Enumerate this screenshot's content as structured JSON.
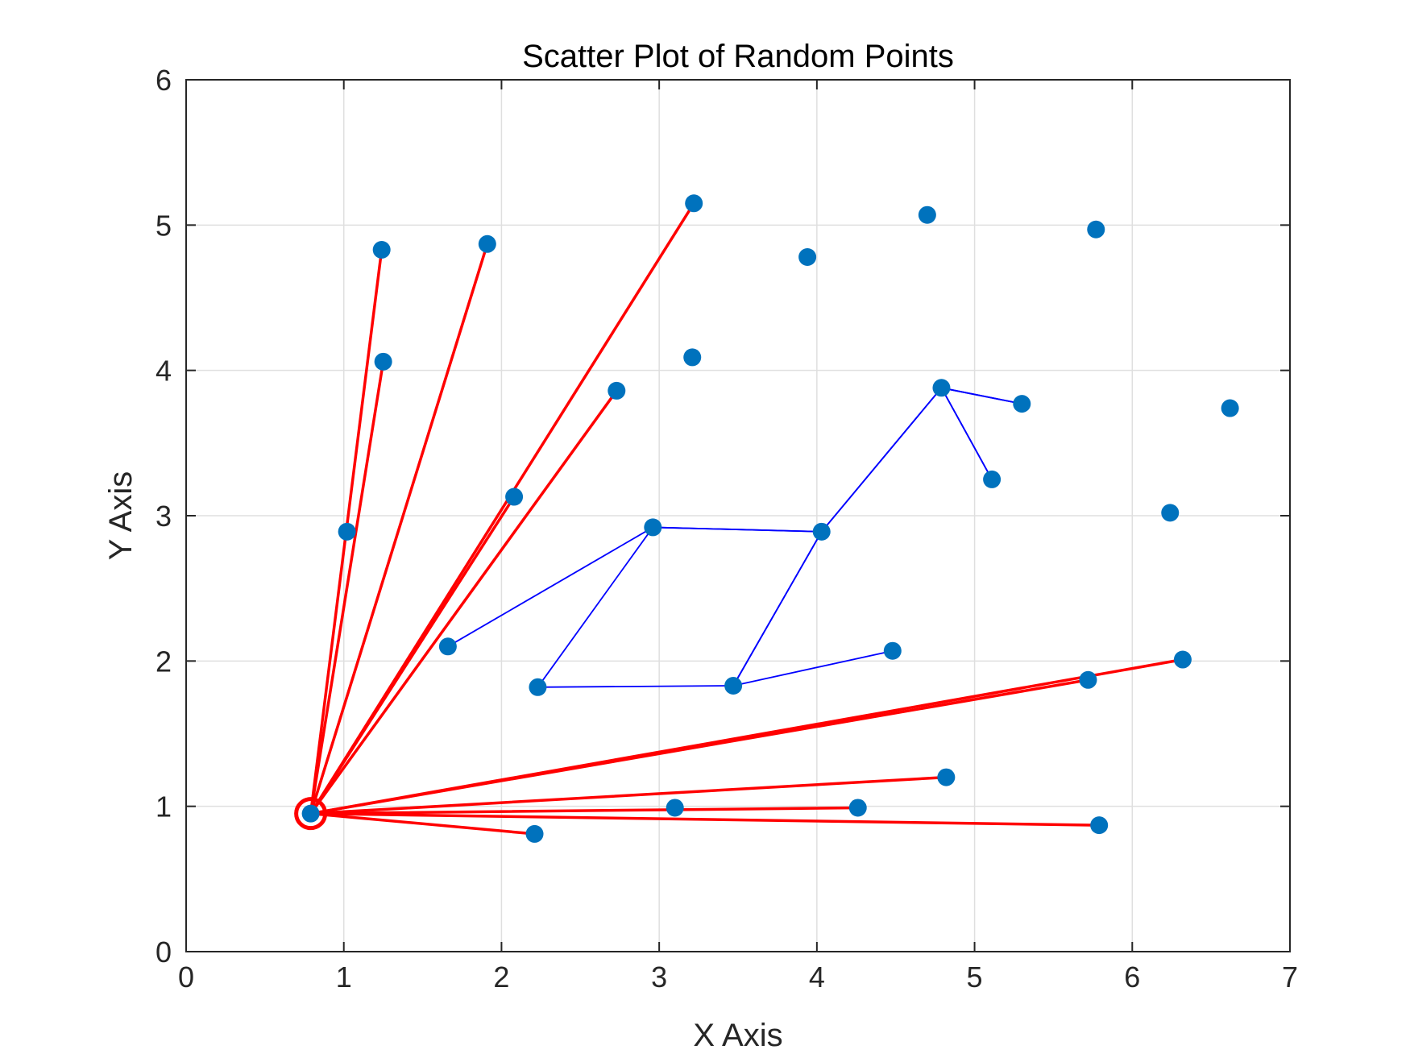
{
  "chart_data": {
    "type": "scatter",
    "title": "Scatter Plot of Random Points",
    "xlabel": "X Axis",
    "ylabel": "Y Axis",
    "xlim": [
      0,
      7
    ],
    "ylim": [
      0,
      6
    ],
    "xticks": [
      "0",
      "1",
      "2",
      "3",
      "4",
      "5",
      "6",
      "7"
    ],
    "yticks": [
      "0",
      "1",
      "2",
      "3",
      "4",
      "5",
      "6"
    ],
    "grid": true,
    "colors": {
      "points": "#0072BD",
      "blue_path": "#0000FF",
      "red_lines": "#FF0000",
      "highlight": "#FF0000"
    },
    "points": [
      [
        0.79,
        0.95
      ],
      [
        1.02,
        2.89
      ],
      [
        1.24,
        4.83
      ],
      [
        1.25,
        4.06
      ],
      [
        1.66,
        2.1
      ],
      [
        1.91,
        4.87
      ],
      [
        2.08,
        3.13
      ],
      [
        2.21,
        0.81
      ],
      [
        2.23,
        1.82
      ],
      [
        2.73,
        3.86
      ],
      [
        2.96,
        2.92
      ],
      [
        3.1,
        0.99
      ],
      [
        3.21,
        4.09
      ],
      [
        3.22,
        5.15
      ],
      [
        3.47,
        1.83
      ],
      [
        3.94,
        4.78
      ],
      [
        4.03,
        2.89
      ],
      [
        4.26,
        0.99
      ],
      [
        4.48,
        2.07
      ],
      [
        4.7,
        5.07
      ],
      [
        4.79,
        3.88
      ],
      [
        4.82,
        1.2
      ],
      [
        5.11,
        3.25
      ],
      [
        5.3,
        3.77
      ],
      [
        5.72,
        1.87
      ],
      [
        5.77,
        4.97
      ],
      [
        5.79,
        0.87
      ],
      [
        6.24,
        3.02
      ],
      [
        6.32,
        2.01
      ],
      [
        6.62,
        3.74
      ]
    ],
    "blue_path": [
      [
        1.66,
        2.1
      ],
      [
        2.96,
        2.92
      ],
      [
        4.03,
        2.89
      ],
      [
        4.79,
        3.88
      ],
      [
        5.3,
        3.77
      ],
      [
        4.79,
        3.88
      ],
      [
        5.11,
        3.25
      ],
      [
        4.79,
        3.88
      ],
      [
        4.03,
        2.89
      ],
      [
        3.47,
        1.83
      ],
      [
        2.23,
        1.82
      ],
      [
        2.96,
        2.92
      ],
      [
        4.03,
        2.89
      ],
      [
        3.47,
        1.83
      ],
      [
        4.48,
        2.07
      ]
    ],
    "highlight_point": [
      0.79,
      0.95
    ],
    "red_lines_from": [
      0.79,
      0.95
    ],
    "red_lines_to": [
      [
        1.24,
        4.83
      ],
      [
        1.25,
        4.06
      ],
      [
        1.91,
        4.87
      ],
      [
        3.22,
        5.15
      ],
      [
        2.08,
        3.13
      ],
      [
        2.73,
        3.86
      ],
      [
        2.21,
        0.81
      ],
      [
        4.26,
        0.99
      ],
      [
        4.82,
        1.2
      ],
      [
        5.79,
        0.87
      ],
      [
        5.72,
        1.87
      ],
      [
        6.32,
        2.01
      ]
    ]
  }
}
